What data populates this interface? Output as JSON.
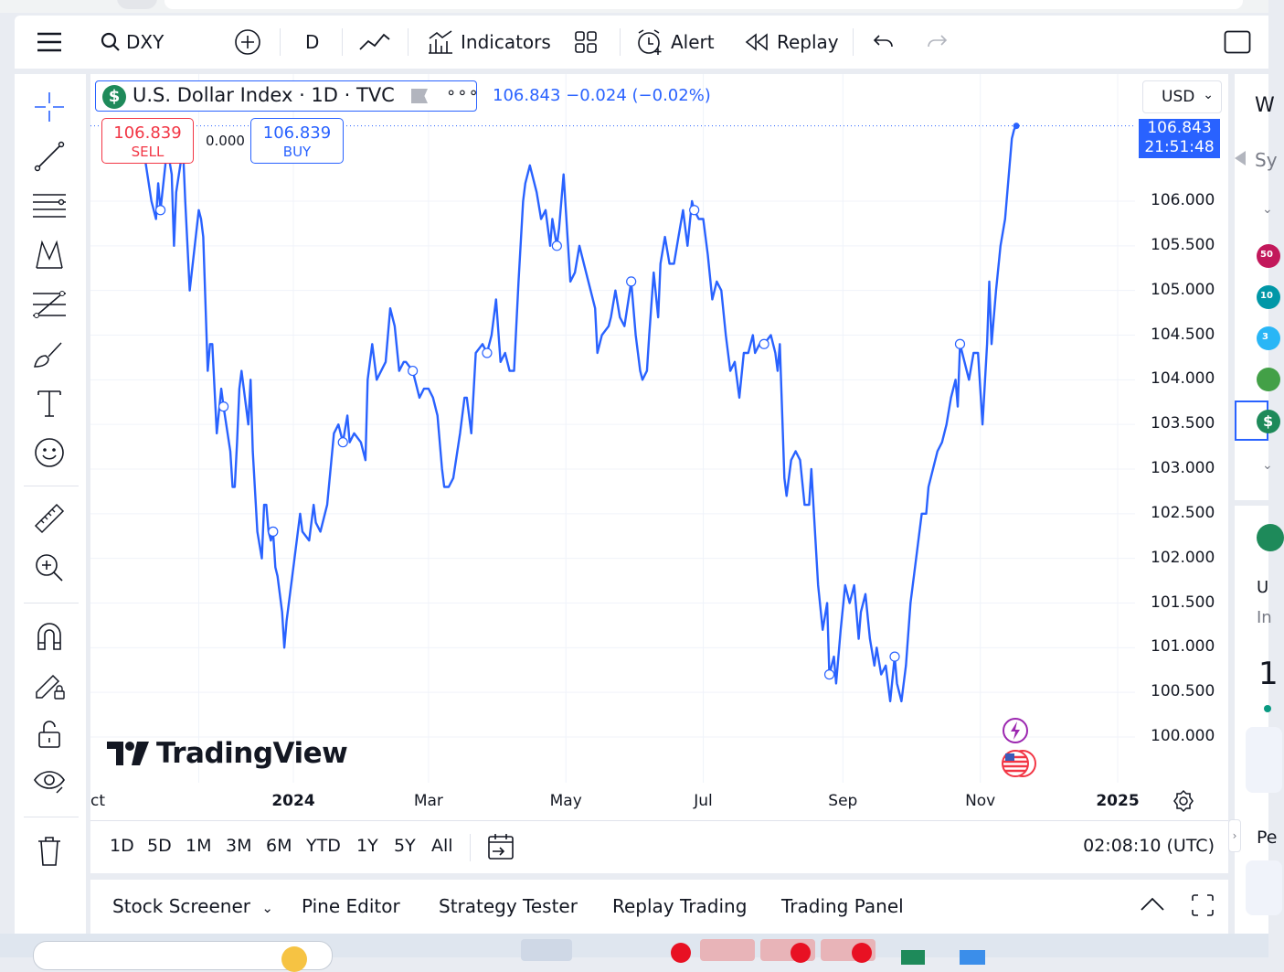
{
  "toolbar": {
    "symbol": "DXY",
    "interval": "D",
    "indicators_label": "Indicators",
    "alert_label": "Alert",
    "replay_label": "Replay"
  },
  "legend": {
    "title": "U.S. Dollar Index · 1D · TVC",
    "last": "106.843",
    "change": "−0.024 (−0.02%)",
    "more": "∘∘∘"
  },
  "trade": {
    "sell_price": "106.839",
    "sell_label": "SELL",
    "buy_price": "106.839",
    "buy_label": "BUY",
    "spread": "0.000"
  },
  "currency": "USD",
  "price_tag": {
    "price": "106.843",
    "countdown": "21:51:48"
  },
  "colors": {
    "line": "#2962ff",
    "sell": "#f23645",
    "buy": "#2962ff",
    "grid": "#f0f3fa"
  },
  "logo_text": "TradingView",
  "ranges": [
    "1D",
    "5D",
    "1M",
    "3M",
    "6M",
    "YTD",
    "1Y",
    "5Y",
    "All"
  ],
  "clock": "02:08:10 (UTC)",
  "bottom_tabs": {
    "screener": "Stock Screener",
    "pine": "Pine Editor",
    "strategy": "Strategy Tester",
    "replay": "Replay Trading",
    "trading": "Trading Panel"
  },
  "right_panel": {
    "w": "W",
    "sy": "Sy",
    "u": "U",
    "in": "In",
    "one": "1",
    "pe": "Pe",
    "badges": [
      "50",
      "10",
      "3",
      "",
      "$"
    ]
  },
  "chart_data": {
    "type": "line",
    "symbol": "U.S. Dollar Index",
    "x_labels": [
      "ct",
      "2024",
      "Mar",
      "May",
      "Jul",
      "Sep",
      "Nov",
      "2025"
    ],
    "y_ticks": [
      100.0,
      100.5,
      101.0,
      101.5,
      102.0,
      102.5,
      103.0,
      103.5,
      104.0,
      104.5,
      105.0,
      105.5,
      106.0
    ],
    "y_tick_labels": [
      "100.000",
      "100.500",
      "101.000",
      "101.500",
      "102.000",
      "102.500",
      "103.000",
      "103.500",
      "104.000",
      "104.500",
      "105.000",
      "105.500",
      "106.000"
    ],
    "ylim": [
      99.6,
      107.1
    ],
    "x_range": [
      "2023-10-24",
      "2025-01-22"
    ],
    "grid": true,
    "series": [
      {
        "values": [
          [
            "2023-10-24",
            106.7
          ],
          [
            "2023-10-27",
            106.5
          ],
          [
            "2023-10-30",
            106.0
          ],
          [
            "2023-11-01",
            105.8
          ],
          [
            "2023-11-02",
            106.2
          ],
          [
            "2023-11-03",
            105.9
          ],
          [
            "2023-11-06",
            106.6
          ],
          [
            "2023-11-08",
            106.3
          ],
          [
            "2023-11-09",
            105.5
          ],
          [
            "2023-11-10",
            106.1
          ],
          [
            "2023-11-13",
            106.6
          ],
          [
            "2023-11-14",
            106.0
          ],
          [
            "2023-11-16",
            105.0
          ],
          [
            "2023-11-20",
            105.9
          ],
          [
            "2023-11-21",
            105.8
          ],
          [
            "2023-11-22",
            105.6
          ],
          [
            "2023-11-24",
            104.1
          ],
          [
            "2023-11-25",
            104.4
          ],
          [
            "2023-11-26",
            104.4
          ],
          [
            "2023-11-28",
            103.4
          ],
          [
            "2023-11-30",
            103.9
          ],
          [
            "2023-12-01",
            103.7
          ],
          [
            "2023-12-04",
            103.2
          ],
          [
            "2023-12-05",
            102.8
          ],
          [
            "2023-12-06",
            102.8
          ],
          [
            "2023-12-07",
            103.3
          ],
          [
            "2023-12-08",
            103.9
          ],
          [
            "2023-12-09",
            104.1
          ],
          [
            "2023-12-12",
            103.5
          ],
          [
            "2023-12-13",
            104.0
          ],
          [
            "2023-12-14",
            103.2
          ],
          [
            "2023-12-16",
            102.3
          ],
          [
            "2023-12-18",
            102.0
          ],
          [
            "2023-12-19",
            102.6
          ],
          [
            "2023-12-20",
            102.6
          ],
          [
            "2023-12-21",
            102.3
          ],
          [
            "2023-12-22",
            102.2
          ],
          [
            "2023-12-23",
            102.3
          ],
          [
            "2023-12-24",
            101.9
          ],
          [
            "2023-12-25",
            101.8
          ],
          [
            "2023-12-27",
            101.4
          ],
          [
            "2023-12-28",
            101.0
          ],
          [
            "2023-12-29",
            101.3
          ],
          [
            "2024-01-02",
            102.1
          ],
          [
            "2024-01-04",
            102.5
          ],
          [
            "2024-01-05",
            102.3
          ],
          [
            "2024-01-08",
            102.2
          ],
          [
            "2024-01-10",
            102.6
          ],
          [
            "2024-01-11",
            102.4
          ],
          [
            "2024-01-13",
            102.3
          ],
          [
            "2024-01-16",
            102.6
          ],
          [
            "2024-01-19",
            103.4
          ],
          [
            "2024-01-21",
            103.5
          ],
          [
            "2024-01-23",
            103.3
          ],
          [
            "2024-01-25",
            103.6
          ],
          [
            "2024-01-26",
            103.3
          ],
          [
            "2024-01-28",
            103.4
          ],
          [
            "2024-01-31",
            103.3
          ],
          [
            "2024-02-02",
            103.1
          ],
          [
            "2024-02-03",
            104.0
          ],
          [
            "2024-02-05",
            104.4
          ],
          [
            "2024-02-07",
            104.0
          ],
          [
            "2024-02-09",
            104.1
          ],
          [
            "2024-02-11",
            104.2
          ],
          [
            "2024-02-13",
            104.8
          ],
          [
            "2024-02-15",
            104.6
          ],
          [
            "2024-02-17",
            104.1
          ],
          [
            "2024-02-19",
            104.2
          ],
          [
            "2024-02-20",
            104.2
          ],
          [
            "2024-02-23",
            104.1
          ],
          [
            "2024-02-26",
            103.8
          ],
          [
            "2024-02-28",
            103.9
          ],
          [
            "2024-03-01",
            103.9
          ],
          [
            "2024-03-03",
            103.8
          ],
          [
            "2024-03-05",
            103.6
          ],
          [
            "2024-03-07",
            103.0
          ],
          [
            "2024-03-08",
            102.8
          ],
          [
            "2024-03-10",
            102.8
          ],
          [
            "2024-03-12",
            102.9
          ],
          [
            "2024-03-15",
            103.4
          ],
          [
            "2024-03-17",
            103.8
          ],
          [
            "2024-03-18",
            103.8
          ],
          [
            "2024-03-20",
            103.4
          ],
          [
            "2024-03-22",
            104.3
          ],
          [
            "2024-03-25",
            104.4
          ],
          [
            "2024-03-27",
            104.3
          ],
          [
            "2024-03-29",
            104.5
          ],
          [
            "2024-03-31",
            104.9
          ],
          [
            "2024-04-02",
            104.2
          ],
          [
            "2024-04-04",
            104.3
          ],
          [
            "2024-04-06",
            104.1
          ],
          [
            "2024-04-08",
            104.1
          ],
          [
            "2024-04-10",
            105.1
          ],
          [
            "2024-04-12",
            106.0
          ],
          [
            "2024-04-13",
            106.2
          ],
          [
            "2024-04-15",
            106.4
          ],
          [
            "2024-04-18",
            106.1
          ],
          [
            "2024-04-20",
            105.8
          ],
          [
            "2024-04-22",
            105.9
          ],
          [
            "2024-04-24",
            105.5
          ],
          [
            "2024-04-25",
            105.8
          ],
          [
            "2024-04-27",
            105.5
          ],
          [
            "2024-04-28",
            105.7
          ],
          [
            "2024-04-30",
            106.3
          ],
          [
            "2024-05-03",
            105.1
          ],
          [
            "2024-05-05",
            105.2
          ],
          [
            "2024-05-07",
            105.5
          ],
          [
            "2024-05-09",
            105.3
          ],
          [
            "2024-05-12",
            105.0
          ],
          [
            "2024-05-14",
            104.8
          ],
          [
            "2024-05-15",
            104.3
          ],
          [
            "2024-05-17",
            104.5
          ],
          [
            "2024-05-20",
            104.6
          ],
          [
            "2024-05-21",
            104.7
          ],
          [
            "2024-05-23",
            105.0
          ],
          [
            "2024-05-25",
            104.7
          ],
          [
            "2024-05-27",
            104.6
          ],
          [
            "2024-05-30",
            105.1
          ],
          [
            "2024-06-01",
            104.5
          ],
          [
            "2024-06-03",
            104.1
          ],
          [
            "2024-06-04",
            104.0
          ],
          [
            "2024-06-06",
            104.1
          ],
          [
            "2024-06-07",
            104.5
          ],
          [
            "2024-06-09",
            105.2
          ],
          [
            "2024-06-11",
            104.7
          ],
          [
            "2024-06-12",
            105.3
          ],
          [
            "2024-06-14",
            105.6
          ],
          [
            "2024-06-16",
            105.3
          ],
          [
            "2024-06-18",
            105.3
          ],
          [
            "2024-06-20",
            105.6
          ],
          [
            "2024-06-22",
            105.9
          ],
          [
            "2024-06-24",
            105.5
          ],
          [
            "2024-06-26",
            106.0
          ],
          [
            "2024-06-27",
            105.9
          ],
          [
            "2024-06-29",
            105.8
          ],
          [
            "2024-07-01",
            105.8
          ],
          [
            "2024-07-03",
            105.4
          ],
          [
            "2024-07-05",
            104.9
          ],
          [
            "2024-07-07",
            105.1
          ],
          [
            "2024-07-09",
            105.0
          ],
          [
            "2024-07-11",
            104.5
          ],
          [
            "2024-07-13",
            104.1
          ],
          [
            "2024-07-15",
            104.2
          ],
          [
            "2024-07-17",
            103.8
          ],
          [
            "2024-07-19",
            104.3
          ],
          [
            "2024-07-21",
            104.3
          ],
          [
            "2024-07-23",
            104.5
          ],
          [
            "2024-07-24",
            104.3
          ],
          [
            "2024-07-26",
            104.4
          ],
          [
            "2024-07-28",
            104.4
          ],
          [
            "2024-07-31",
            104.5
          ],
          [
            "2024-08-02",
            104.3
          ],
          [
            "2024-08-03",
            104.1
          ],
          [
            "2024-08-04",
            104.4
          ],
          [
            "2024-08-06",
            102.9
          ],
          [
            "2024-08-07",
            102.7
          ],
          [
            "2024-08-09",
            103.1
          ],
          [
            "2024-08-11",
            103.2
          ],
          [
            "2024-08-13",
            103.1
          ],
          [
            "2024-08-15",
            102.6
          ],
          [
            "2024-08-17",
            102.6
          ],
          [
            "2024-08-18",
            103.0
          ],
          [
            "2024-08-21",
            101.7
          ],
          [
            "2024-08-23",
            101.2
          ],
          [
            "2024-08-25",
            101.5
          ],
          [
            "2024-08-26",
            100.7
          ],
          [
            "2024-08-28",
            100.9
          ],
          [
            "2024-08-29",
            100.6
          ],
          [
            "2024-08-31",
            101.2
          ],
          [
            "2024-09-02",
            101.7
          ],
          [
            "2024-09-04",
            101.5
          ],
          [
            "2024-09-06",
            101.7
          ],
          [
            "2024-09-08",
            101.1
          ],
          [
            "2024-09-09",
            101.4
          ],
          [
            "2024-09-11",
            101.6
          ],
          [
            "2024-09-13",
            101.1
          ],
          [
            "2024-09-15",
            100.8
          ],
          [
            "2024-09-16",
            101.0
          ],
          [
            "2024-09-18",
            100.7
          ],
          [
            "2024-09-20",
            100.8
          ],
          [
            "2024-09-22",
            100.4
          ],
          [
            "2024-09-24",
            100.9
          ],
          [
            "2024-09-25",
            100.6
          ],
          [
            "2024-09-27",
            100.4
          ],
          [
            "2024-09-29",
            100.8
          ],
          [
            "2024-10-01",
            101.5
          ],
          [
            "2024-10-04",
            102.1
          ],
          [
            "2024-10-06",
            102.5
          ],
          [
            "2024-10-08",
            102.5
          ],
          [
            "2024-10-09",
            102.8
          ],
          [
            "2024-10-11",
            103.0
          ],
          [
            "2024-10-13",
            103.2
          ],
          [
            "2024-10-15",
            103.3
          ],
          [
            "2024-10-17",
            103.5
          ],
          [
            "2024-10-19",
            103.8
          ],
          [
            "2024-10-21",
            104.0
          ],
          [
            "2024-10-22",
            103.7
          ],
          [
            "2024-10-23",
            104.4
          ],
          [
            "2024-10-25",
            104.2
          ],
          [
            "2024-10-27",
            104.0
          ],
          [
            "2024-10-29",
            104.3
          ],
          [
            "2024-10-31",
            104.3
          ],
          [
            "2024-11-02",
            103.5
          ],
          [
            "2024-11-04",
            104.4
          ],
          [
            "2024-11-05",
            105.1
          ],
          [
            "2024-11-06",
            104.4
          ],
          [
            "2024-11-08",
            105.0
          ],
          [
            "2024-11-10",
            105.5
          ],
          [
            "2024-11-12",
            105.8
          ],
          [
            "2024-11-15",
            106.7
          ],
          [
            "2024-11-16",
            106.8
          ],
          [
            "2024-11-17",
            106.843
          ]
        ]
      }
    ]
  }
}
